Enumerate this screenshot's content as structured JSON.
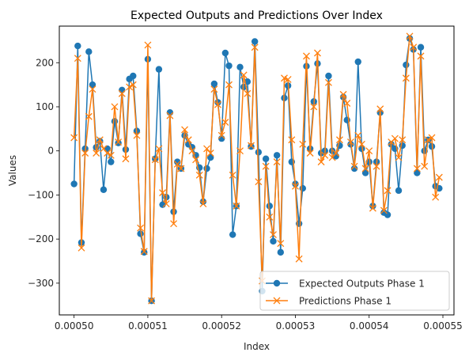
{
  "chart_data": {
    "type": "line",
    "title": "Expected Outputs and Predictions Over Index",
    "xlabel": "Index",
    "ylabel": "Values",
    "xlim": [
      0.000498,
      0.0005515
    ],
    "ylim": [
      -372,
      283
    ],
    "xticks": [
      0.0005,
      0.00051,
      0.00052,
      0.00053,
      0.00054,
      0.00055
    ],
    "xtick_labels": [
      "0.00050",
      "0.00051",
      "0.00052",
      "0.00053",
      "0.00054",
      "0.00055"
    ],
    "yticks": [
      -300,
      -200,
      -100,
      0,
      100,
      200
    ],
    "ytick_labels": [
      "−300",
      "−200",
      "−100",
      "0",
      "100",
      "200"
    ],
    "grid": false,
    "legend_position": "lower-right",
    "x": [
      0.0005,
      0.0005005,
      0.000501,
      0.0005015,
      0.000502,
      0.0005025,
      0.000503,
      0.0005035,
      0.000504,
      0.0005045,
      0.000505,
      0.0005055,
      0.000506,
      0.0005065,
      0.000507,
      0.0005075,
      0.000508,
      0.0005085,
      0.000509,
      0.0005095,
      0.00051,
      0.0005105,
      0.000511,
      0.0005115,
      0.000512,
      0.0005125,
      0.000513,
      0.0005135,
      0.000514,
      0.0005145,
      0.000515,
      0.0005155,
      0.000516,
      0.0005165,
      0.000517,
      0.0005175,
      0.000518,
      0.0005185,
      0.000519,
      0.0005195,
      0.00052,
      0.0005205,
      0.000521,
      0.0005215,
      0.000522,
      0.0005225,
      0.000523,
      0.0005235,
      0.000524,
      0.0005245,
      0.000525,
      0.0005255,
      0.000526,
      0.0005265,
      0.000527,
      0.0005275,
      0.000528,
      0.0005285,
      0.000529,
      0.0005295,
      0.00053,
      0.0005305,
      0.000531,
      0.0005315,
      0.000532,
      0.0005325,
      0.000533,
      0.0005335,
      0.000534,
      0.0005345,
      0.000535,
      0.0005355,
      0.000536,
      0.0005365,
      0.000537,
      0.0005375,
      0.000538,
      0.0005385,
      0.000539,
      0.0005395,
      0.00054,
      0.0005405,
      0.000541,
      0.0005415,
      0.000542,
      0.0005425,
      0.000543,
      0.0005435,
      0.000544,
      0.0005445,
      0.000545,
      0.0005455,
      0.000546,
      0.0005465,
      0.000547,
      0.0005475,
      0.000548,
      0.0005485,
      0.000549,
      0.0005495
    ],
    "series": [
      {
        "name": "Expected Outputs Phase 1",
        "color": "#1f77b4",
        "marker": "circle",
        "values": [
          -75,
          238,
          -208,
          5,
          225,
          150,
          8,
          22,
          -88,
          5,
          -25,
          67,
          18,
          138,
          3,
          163,
          170,
          45,
          -188,
          -230,
          208,
          -340,
          -18,
          185,
          -122,
          -105,
          87,
          -138,
          -25,
          -40,
          35,
          15,
          8,
          -10,
          -38,
          -115,
          -40,
          -15,
          152,
          110,
          28,
          222,
          193,
          -190,
          -125,
          190,
          145,
          157,
          10,
          248,
          -3,
          -318,
          -18,
          -125,
          -205,
          -10,
          -230,
          120,
          148,
          -25,
          -75,
          -165,
          -85,
          192,
          5,
          112,
          198,
          -5,
          0,
          170,
          0,
          -12,
          12,
          122,
          70,
          15,
          -40,
          202,
          5,
          -50,
          -25,
          -125,
          -25,
          87,
          -140,
          -145,
          15,
          5,
          -90,
          12,
          195,
          255,
          230,
          -50,
          235,
          0,
          25,
          10,
          -80,
          -85
        ]
      },
      {
        "name": "Predictions Phase 1",
        "color": "#ff7f0e",
        "marker": "x",
        "values": [
          30,
          210,
          -220,
          -5,
          78,
          140,
          -5,
          25,
          5,
          -5,
          -10,
          100,
          20,
          130,
          -18,
          145,
          150,
          35,
          -175,
          -228,
          240,
          -340,
          -20,
          5,
          -95,
          -120,
          80,
          -165,
          -30,
          -40,
          48,
          25,
          0,
          -20,
          -55,
          -120,
          5,
          -5,
          140,
          105,
          35,
          65,
          150,
          -55,
          -125,
          0,
          172,
          130,
          12,
          235,
          -70,
          -295,
          -35,
          -150,
          -190,
          -25,
          -210,
          165,
          162,
          25,
          -80,
          -245,
          15,
          215,
          -5,
          100,
          222,
          -25,
          -10,
          155,
          -15,
          -5,
          25,
          128,
          108,
          20,
          -35,
          35,
          15,
          -40,
          0,
          -130,
          -35,
          95,
          -135,
          -90,
          20,
          28,
          -15,
          25,
          165,
          260,
          235,
          -40,
          215,
          -35,
          25,
          30,
          -105,
          -60
        ]
      }
    ]
  }
}
